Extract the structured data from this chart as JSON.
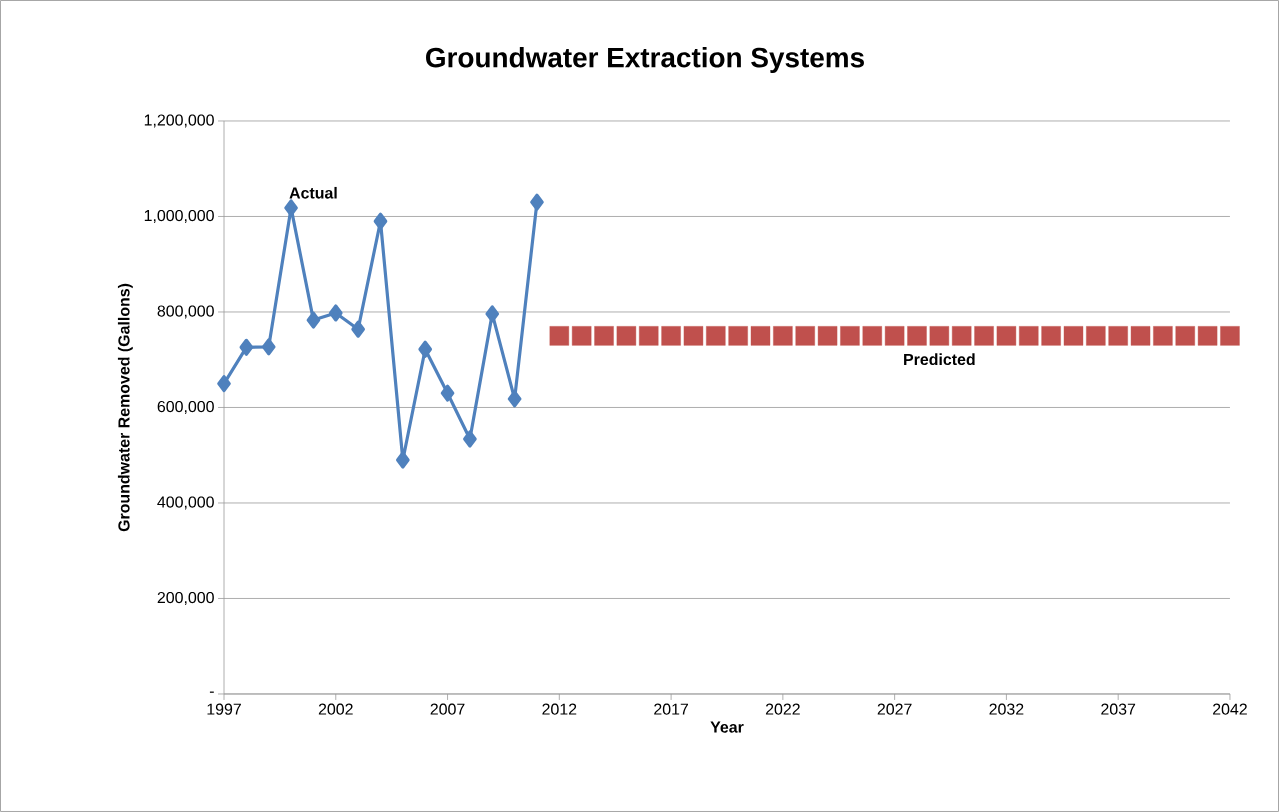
{
  "chart_data": {
    "type": "line",
    "title": "Groundwater Extraction Systems",
    "xlabel": "Year",
    "ylabel": "Groundwater Removed (Gallons)",
    "xlim": [
      1997,
      2042
    ],
    "xticks": [
      1997,
      2002,
      2007,
      2012,
      2017,
      2022,
      2027,
      2032,
      2037,
      2042
    ],
    "ylim": [
      0,
      1200000
    ],
    "yticks": [
      {
        "value": 0,
        "label": "-"
      },
      {
        "value": 200000,
        "label": "200,000"
      },
      {
        "value": 400000,
        "label": "400,000"
      },
      {
        "value": 600000,
        "label": "600,000"
      },
      {
        "value": 800000,
        "label": "800,000"
      },
      {
        "value": 1000000,
        "label": "1,000,000"
      },
      {
        "value": 1200000,
        "label": "1,200,000"
      }
    ],
    "grid": "y",
    "series": [
      {
        "name": "Actual",
        "type": "line",
        "color": "#4f81bd",
        "marker": "diamond",
        "line_style": "solid",
        "x": [
          1997,
          1998,
          1999,
          2000,
          2001,
          2002,
          2003,
          2004,
          2005,
          2006,
          2007,
          2008,
          2009,
          2010,
          2011
        ],
        "values": [
          650000,
          726000,
          727000,
          1018000,
          783000,
          798000,
          764000,
          990000,
          490000,
          722000,
          630000,
          534000,
          796000,
          618000,
          1030000
        ]
      },
      {
        "name": "Predicted",
        "type": "scatter",
        "color": "#c0504d",
        "marker": "square",
        "x": [
          2012,
          2013,
          2014,
          2015,
          2016,
          2017,
          2018,
          2019,
          2020,
          2021,
          2022,
          2023,
          2024,
          2025,
          2026,
          2027,
          2028,
          2029,
          2030,
          2031,
          2032,
          2033,
          2034,
          2035,
          2036,
          2037,
          2038,
          2039,
          2040,
          2041,
          2042
        ],
        "values": [
          750000,
          750000,
          750000,
          750000,
          750000,
          750000,
          750000,
          750000,
          750000,
          750000,
          750000,
          750000,
          750000,
          750000,
          750000,
          750000,
          750000,
          750000,
          750000,
          750000,
          750000,
          750000,
          750000,
          750000,
          750000,
          750000,
          750000,
          750000,
          750000,
          750000,
          750000
        ]
      }
    ]
  }
}
